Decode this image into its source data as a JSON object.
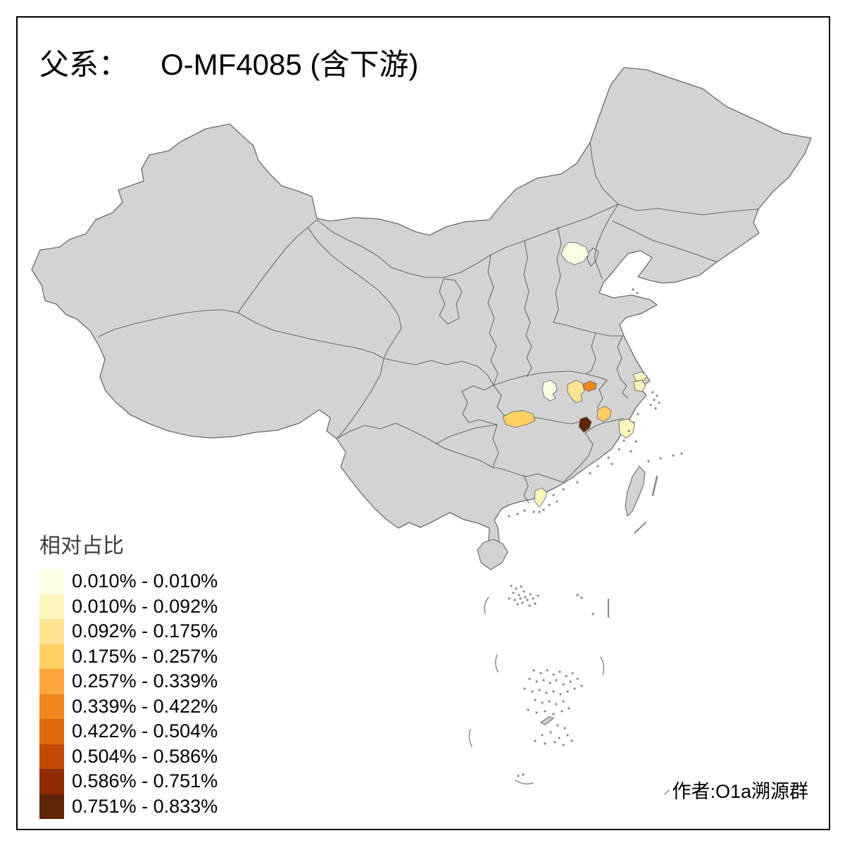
{
  "title": {
    "prefix": "父系：",
    "value": "O-MF4085 (含下游)"
  },
  "credit": {
    "text": "作者:O1a溯源群"
  },
  "map_style": {
    "background": "#FFFFFF",
    "frame_color": "#000000",
    "base_region_fill": "#D3D3D3",
    "boundary_color": "#6B6B6B",
    "islet_color": "#8A8A8A"
  },
  "chart_data": {
    "type": "choropleth",
    "title": "父系： O-MF4085 (含下游)",
    "legend_title": "相对占比",
    "legend_position": "bottom-left",
    "classes": [
      {
        "range": "0.010% - 0.010%",
        "color": "#FFFFE3"
      },
      {
        "range": "0.010% - 0.092%",
        "color": "#FDF5BE"
      },
      {
        "range": "0.092% - 0.175%",
        "color": "#FEE391"
      },
      {
        "range": "0.175% - 0.257%",
        "color": "#FDCE62"
      },
      {
        "range": "0.257% - 0.339%",
        "color": "#FDA63C"
      },
      {
        "range": "0.339% - 0.422%",
        "color": "#F0861D"
      },
      {
        "range": "0.422% - 0.504%",
        "color": "#DC6A10"
      },
      {
        "range": "0.504% - 0.586%",
        "color": "#C24A02"
      },
      {
        "range": "0.586% - 0.751%",
        "color": "#8F2B05"
      },
      {
        "range": "0.751% - 0.833%",
        "color": "#5F2506"
      }
    ],
    "highlighted_regions": [
      {
        "id": "beijing",
        "approx_location": "Beijing area",
        "class": 1,
        "value_range": "0.010% - 0.010%"
      },
      {
        "id": "hubei-northwest",
        "approx_location": "northwest Hubei",
        "class": 1,
        "value_range": "0.010% - 0.010%"
      },
      {
        "id": "guangdong-central",
        "approx_location": "central Guangdong",
        "class": 2,
        "value_range": "0.010% - 0.092%"
      },
      {
        "id": "jiangsu-south",
        "approx_location": "southern Jiangsu",
        "class": 2,
        "value_range": "0.010% - 0.092%"
      },
      {
        "id": "shanghai",
        "approx_location": "Shanghai area",
        "class": 2,
        "value_range": "0.010% - 0.092%"
      },
      {
        "id": "zhejiang-central",
        "approx_location": "central-east Zhejiang",
        "class": 2,
        "value_range": "0.010% - 0.092%"
      },
      {
        "id": "hubei-central",
        "approx_location": "central Hubei",
        "class": 3,
        "value_range": "0.092% - 0.175%"
      },
      {
        "id": "hunan-north",
        "approx_location": "northern Hunan",
        "class": 4,
        "value_range": "0.175% - 0.257%"
      },
      {
        "id": "jiangxi-north",
        "approx_location": "northern Jiangxi",
        "class": 4,
        "value_range": "0.175% - 0.257%"
      },
      {
        "id": "hubei-east",
        "approx_location": "eastern Hubei",
        "class": 6,
        "value_range": "0.339% - 0.422%"
      },
      {
        "id": "jiangxi-northeast",
        "approx_location": "northeastern Jiangxi",
        "class": 10,
        "value_range": "0.751% - 0.833%"
      }
    ]
  }
}
